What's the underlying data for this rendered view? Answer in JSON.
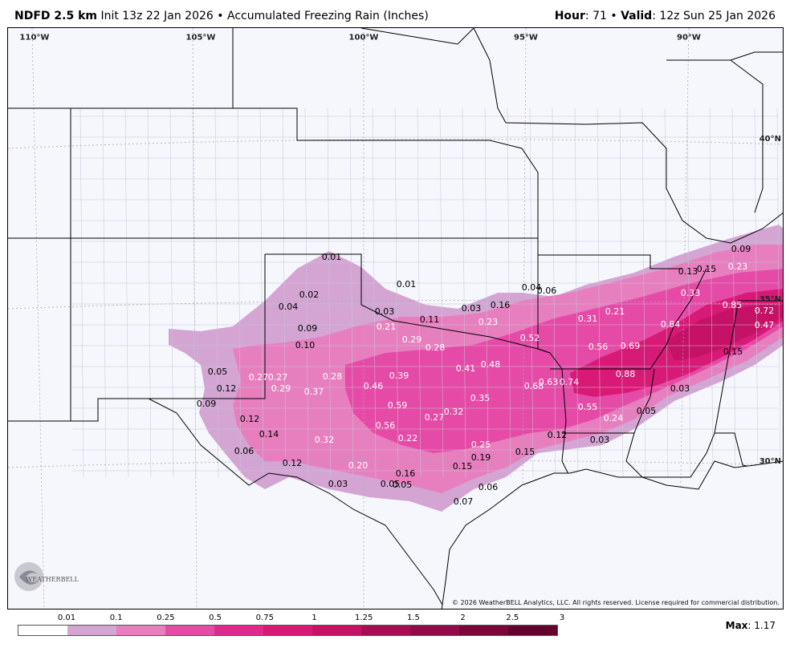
{
  "header": {
    "model": "NDFD 2.5 km",
    "init": "Init 13z 22 Jan 2026",
    "separator": "•",
    "product": "Accumulated Freezing Rain (Inches)",
    "hour_label": "Hour",
    "hour_value": ": 71",
    "valid_label": "Valid",
    "valid_value": ": 12z Sun 25 Jan 2026"
  },
  "map": {
    "longitudes": [
      "110°W",
      "105°W",
      "100°W",
      "95°W",
      "90°W"
    ],
    "latitudes": [
      "40°N",
      "35°N",
      "30°N"
    ],
    "values": [
      "0.01",
      "0.01",
      "0.02",
      "0.04",
      "0.09",
      "0.10",
      "0.03",
      "0.21",
      "0.11",
      "0.03",
      "0.16",
      "0.23",
      "0.04",
      "0.06",
      "0.29",
      "0.28",
      "0.52",
      "0.05",
      "0.12",
      "0.27",
      "0.27",
      "0.29",
      "0.37",
      "0.28",
      "0.39",
      "0.46",
      "0.41",
      "0.48",
      "0.09",
      "0.12",
      "0.14",
      "0.06",
      "0.32",
      "0.56",
      "0.59",
      "0.27",
      "0.32",
      "0.35",
      "0.22",
      "0.12",
      "0.20",
      "0.03",
      "0.05",
      "0.05",
      "0.16",
      "0.15",
      "0.25",
      "0.19",
      "0.15",
      "0.06",
      "0.07",
      "0.68",
      "0.63",
      "0.74",
      "0.55",
      "0.12",
      "0.03",
      "0.24",
      "0.05",
      "0.31",
      "0.56",
      "0.69",
      "0.88",
      "0.21",
      "0.84",
      "0.13",
      "0.15",
      "0.23",
      "0.09",
      "0.33",
      "0.85",
      "0.72",
      "0.47",
      "0.15",
      "0.03"
    ]
  },
  "logo_text": "WEATHERBELL",
  "copyright": "© 2026 WeatherBELL Analytics, LLC. All rights reserved. License required for commercial distribution.",
  "legend": {
    "ticks": [
      "0.01",
      "0.1",
      "0.25",
      "0.5",
      "0.75",
      "1",
      "1.25",
      "1.5",
      "2",
      "2.5",
      "3"
    ],
    "colors": [
      "#ffffff",
      "#d4a5d3",
      "#e77fbf",
      "#e64aa7",
      "#e0298f",
      "#d81a77",
      "#c51166",
      "#a90c55",
      "#920a47",
      "#7c0638",
      "#64022b"
    ],
    "max_label": "Max",
    "max_value": ": 1.17"
  }
}
